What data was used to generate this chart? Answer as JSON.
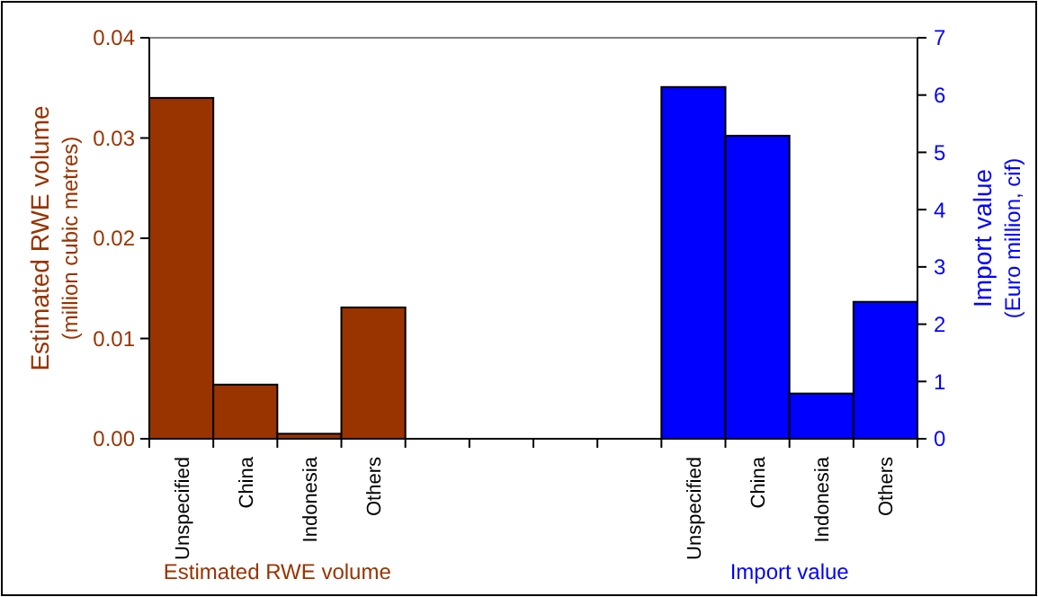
{
  "chart_data": {
    "type": "bar",
    "categories": [
      "Unspecified",
      "China",
      "Indonesia",
      "Others",
      null,
      null,
      null,
      null,
      "Unspecified",
      "China",
      "Indonesia",
      "Others"
    ],
    "series": [
      {
        "color": "#993300",
        "values": [
          0.034,
          0.0054,
          0.0005,
          0.0131,
          null,
          null,
          null,
          null,
          null,
          null,
          null,
          null
        ]
      },
      {
        "color": "#0000ff",
        "axis": "y2",
        "values": [
          null,
          null,
          null,
          null,
          null,
          null,
          null,
          null,
          6.14,
          5.29,
          0.79,
          2.39
        ]
      }
    ],
    "ylabel": "Estimated RWE volume\n(million cubic metres)",
    "y2label": "Import value\n(Euro million, cif)",
    "ylim": [
      0,
      0.04
    ],
    "yticks": [
      {
        "value": 0,
        "label": "0.00"
      },
      {
        "value": 0.01,
        "label": "0.01"
      },
      {
        "value": 0.02,
        "label": "0.02"
      },
      {
        "value": 0.03,
        "label": "0.03"
      },
      {
        "value": 0.04,
        "label": "0.04"
      }
    ],
    "y2lim": [
      0,
      7
    ],
    "y2ticks": [
      0,
      1,
      2,
      3,
      4,
      5,
      6,
      7
    ],
    "annotations": [
      "Estimated RWE volume",
      "Import value"
    ],
    "grid": false
  }
}
